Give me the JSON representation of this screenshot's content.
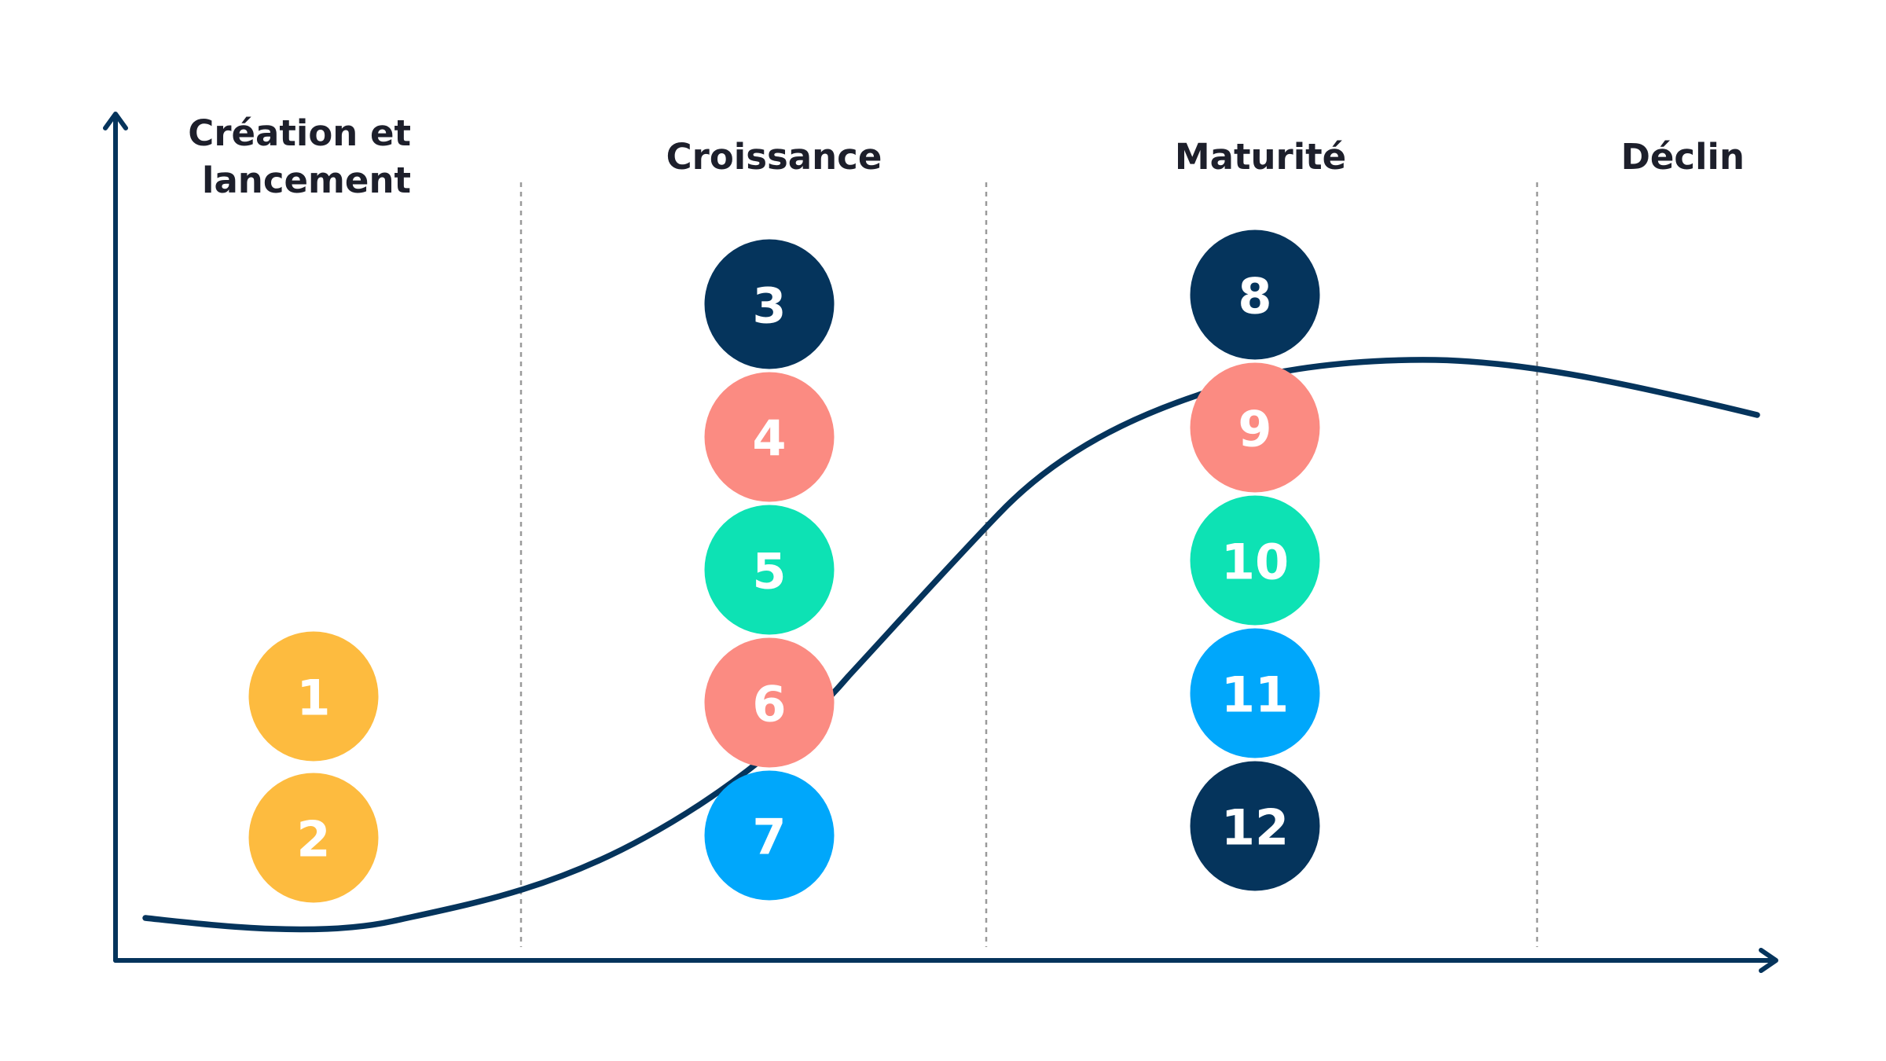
{
  "colors": {
    "axis": "#05345c",
    "curve": "#05345c",
    "divider": "#9a9a9a",
    "text": "#1d1f2b",
    "yellow": "#fdbb3f",
    "navy": "#05345c",
    "salmon": "#fb8b82",
    "mint": "#0de2b4",
    "blue": "#00a7fb"
  },
  "phases": [
    {
      "id": "creation",
      "label_line1": "Création et",
      "label_line2": "lancement"
    },
    {
      "id": "croissance",
      "label_line1": "Croissance"
    },
    {
      "id": "maturite",
      "label_line1": "Maturité"
    },
    {
      "id": "declin",
      "label_line1": "Déclin"
    }
  ],
  "markers": [
    {
      "n": "1",
      "phase": "creation",
      "color": "yellow"
    },
    {
      "n": "2",
      "phase": "creation",
      "color": "yellow"
    },
    {
      "n": "3",
      "phase": "croissance",
      "color": "navy"
    },
    {
      "n": "4",
      "phase": "croissance",
      "color": "salmon"
    },
    {
      "n": "5",
      "phase": "croissance",
      "color": "mint"
    },
    {
      "n": "6",
      "phase": "croissance",
      "color": "salmon"
    },
    {
      "n": "7",
      "phase": "croissance",
      "color": "blue"
    },
    {
      "n": "8",
      "phase": "maturite",
      "color": "navy"
    },
    {
      "n": "9",
      "phase": "maturite",
      "color": "salmon"
    },
    {
      "n": "10",
      "phase": "maturite",
      "color": "mint"
    },
    {
      "n": "11",
      "phase": "maturite",
      "color": "blue"
    },
    {
      "n": "12",
      "phase": "maturite",
      "color": "navy"
    }
  ]
}
